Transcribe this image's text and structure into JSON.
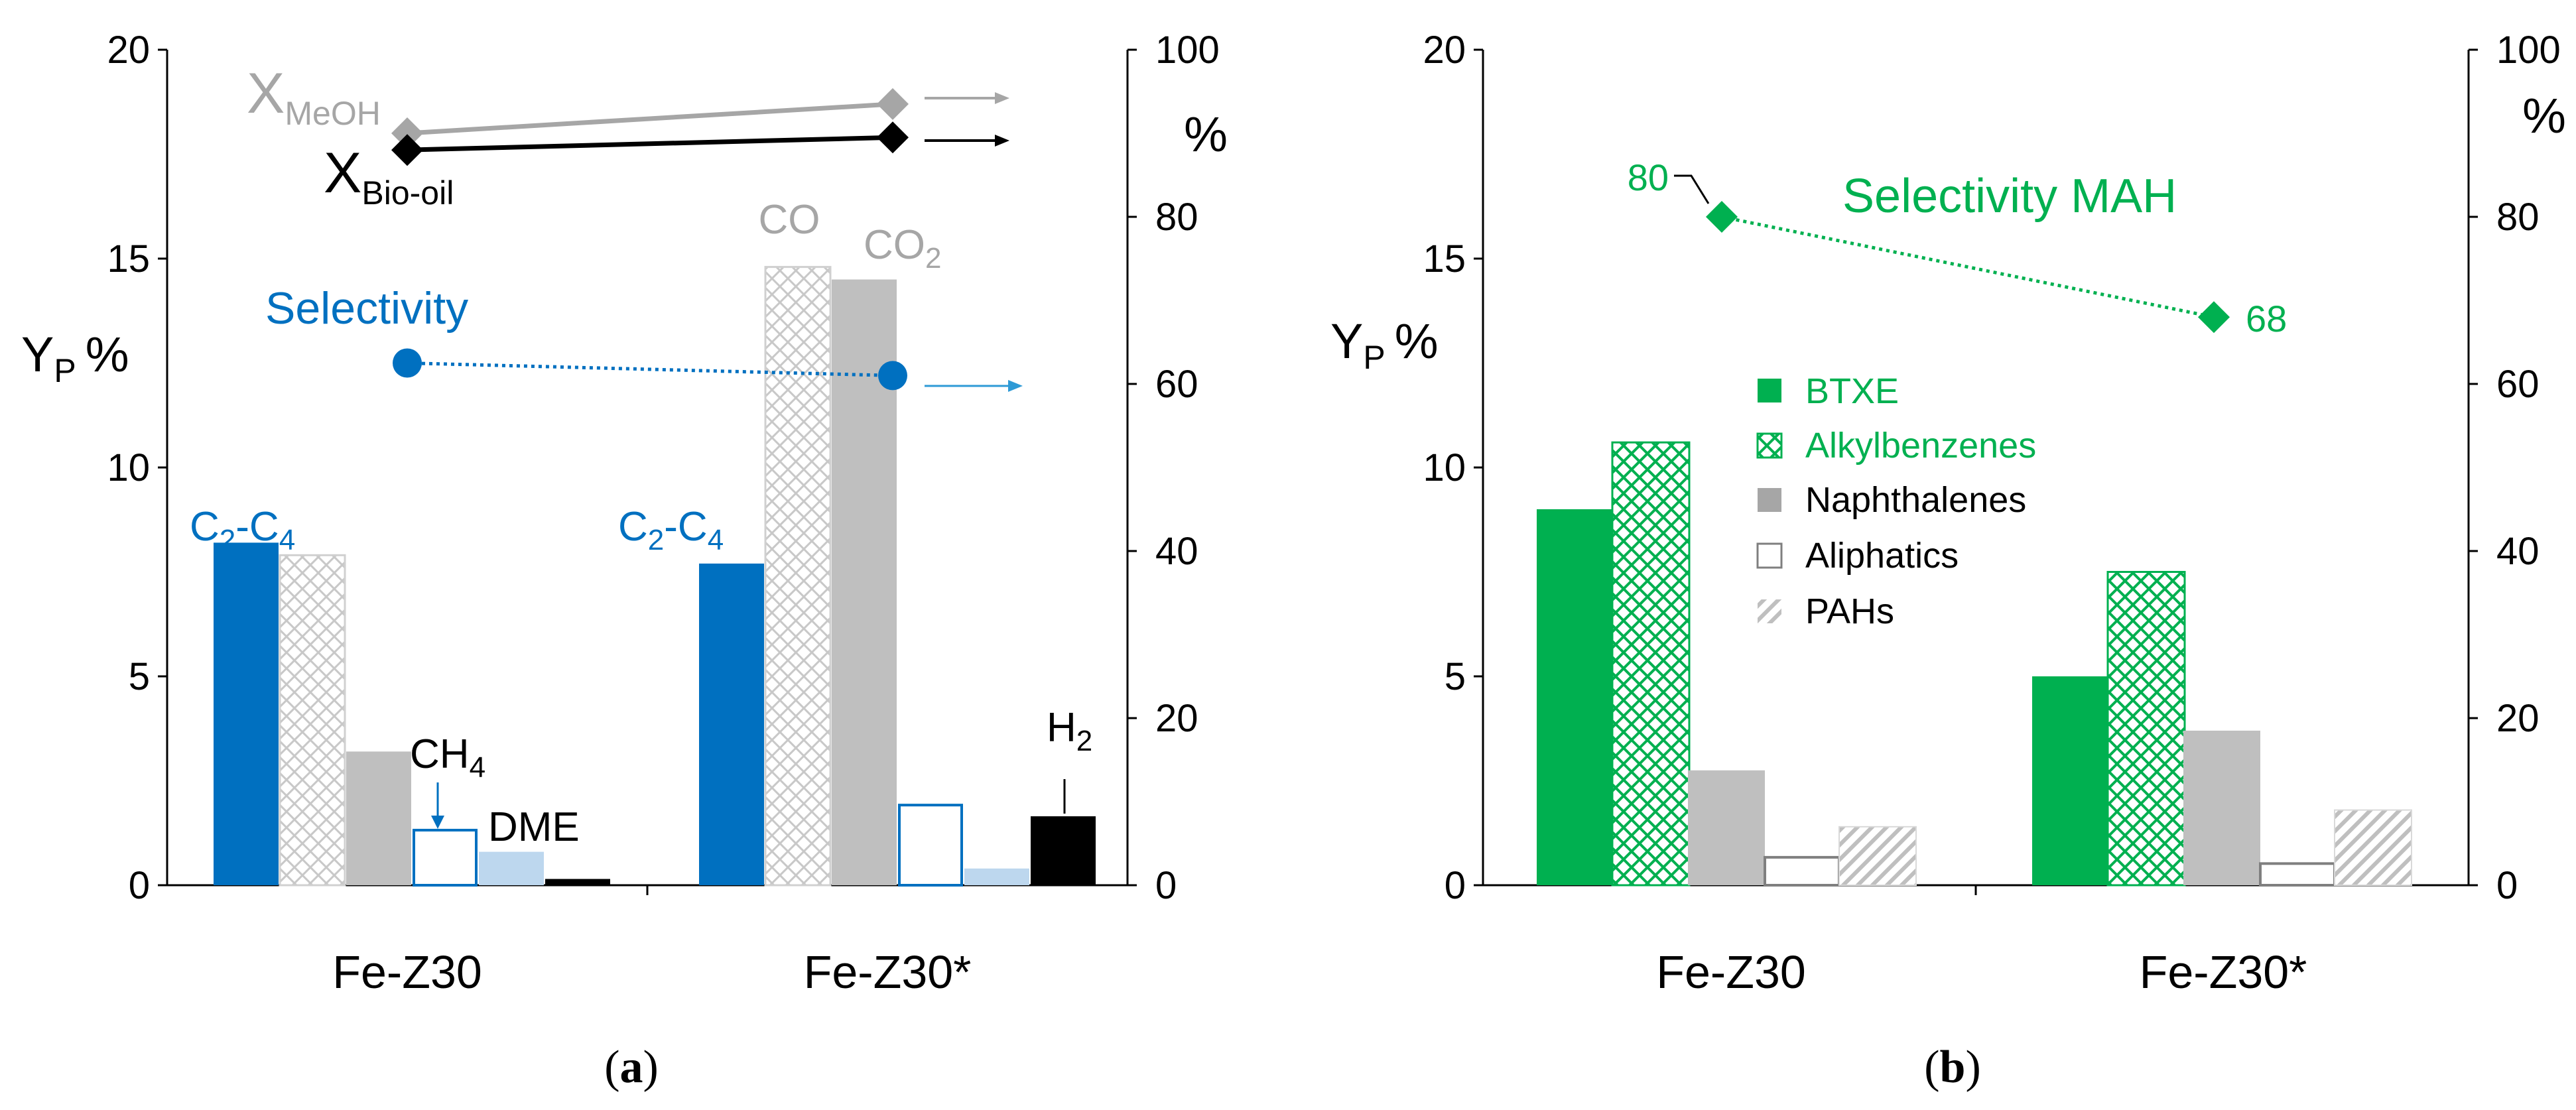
{
  "chart_data": [
    {
      "panel_label": "a",
      "caption": "(a)",
      "type": "bar",
      "categories": [
        "Fe-Z30",
        "Fe-Z30*"
      ],
      "left_axis": {
        "label": "Y",
        "label_sub": "P",
        "label_suffix": "%",
        "range": [
          0,
          20
        ],
        "ticks": [
          0,
          5,
          10,
          15,
          20
        ],
        "tick_labels": [
          "0",
          "5",
          "10",
          "15",
          "20"
        ]
      },
      "right_axis": {
        "label": "%",
        "range": [
          0,
          100
        ],
        "ticks": [
          0,
          20,
          40,
          60,
          80,
          100
        ],
        "tick_labels": [
          "0",
          "20",
          "40",
          "60",
          "80",
          "100"
        ]
      },
      "series": [
        {
          "name": "C2-C4",
          "values": [
            8.2,
            7.7
          ],
          "color": "#0070C0",
          "style": "solid"
        },
        {
          "name": "CO",
          "values": [
            7.9,
            14.8
          ],
          "color": "#C8C8C8",
          "style": "crosshatch"
        },
        {
          "name": "CO2",
          "values": [
            3.2,
            14.5
          ],
          "color": "#BFBFBF",
          "style": "solid"
        },
        {
          "name": "CH4",
          "values": [
            1.35,
            1.95
          ],
          "color": "#0070C0",
          "style": "outline"
        },
        {
          "name": "DME",
          "values": [
            0.8,
            0.4
          ],
          "color": "#BDD7EE",
          "style": "solid"
        },
        {
          "name": "H2",
          "values": [
            0.15,
            1.65
          ],
          "color": "#000000",
          "style": "solid"
        }
      ],
      "lines": [
        {
          "name": "XMeOH",
          "axis": "right",
          "values": [
            90,
            93.5
          ],
          "color": "#A6A6A6"
        },
        {
          "name": "XBio-oil",
          "axis": "right",
          "values": [
            88,
            89.5
          ],
          "color": "#000000"
        },
        {
          "name": "Selectivity",
          "axis": "right",
          "values": [
            62.5,
            61
          ],
          "color": "#0070C0",
          "dotted": true
        }
      ],
      "annotations": {
        "xmeoh_main": "X",
        "xmeoh_sub": "MeOH",
        "xbio_main": "X",
        "xbio_sub": "Bio-oil",
        "selectivity": "Selectivity",
        "c2c4_main1": "C",
        "c2c4_sub1": "2",
        "c2c4_mid": "-C",
        "c2c4_sub2": "4",
        "co": "CO",
        "co2_main": "CO",
        "co2_sub": "2",
        "ch4_main": "CH",
        "ch4_sub": "4",
        "dme": "DME",
        "h2_main": "H",
        "h2_sub": "2"
      }
    },
    {
      "panel_label": "b",
      "caption": "(b)",
      "type": "bar",
      "categories": [
        "Fe-Z30",
        "Fe-Z30*"
      ],
      "left_axis": {
        "label": "Y",
        "label_sub": "P",
        "label_suffix": "%",
        "range": [
          0,
          20
        ],
        "ticks": [
          0,
          5,
          10,
          15,
          20
        ],
        "tick_labels": [
          "0",
          "5",
          "10",
          "15",
          "20"
        ]
      },
      "right_axis": {
        "label": "%",
        "range": [
          0,
          100
        ],
        "ticks": [
          0,
          20,
          40,
          60,
          80,
          100
        ],
        "tick_labels": [
          "0",
          "20",
          "40",
          "60",
          "80",
          "100"
        ]
      },
      "series": [
        {
          "name": "BTXE",
          "values": [
            9.0,
            5.0
          ],
          "color": "#00B050",
          "style": "solid"
        },
        {
          "name": "Alkylbenzenes",
          "values": [
            10.6,
            7.5
          ],
          "color": "#00B050",
          "style": "crosshatch"
        },
        {
          "name": "Naphthalenes",
          "values": [
            2.75,
            3.7
          ],
          "color": "#BFBFBF",
          "style": "solid"
        },
        {
          "name": "Aliphatics",
          "values": [
            0.7,
            0.55
          ],
          "color": "#7F7F7F",
          "style": "outline"
        },
        {
          "name": "PAHs",
          "values": [
            1.4,
            1.8
          ],
          "color": "#A6A6A6",
          "style": "diagonal"
        }
      ],
      "lines": [
        {
          "name": "Selectivity MAH",
          "axis": "right",
          "values": [
            80,
            68
          ],
          "color": "#00B050",
          "dotted": true,
          "value_labels": [
            "80",
            "68"
          ]
        }
      ],
      "legend": [
        "BTXE",
        "Alkylbenzenes",
        "Naphthalenes",
        "Aliphatics",
        "PAHs"
      ],
      "annotations": {
        "selectivity": "Selectivity  MAH"
      }
    }
  ]
}
